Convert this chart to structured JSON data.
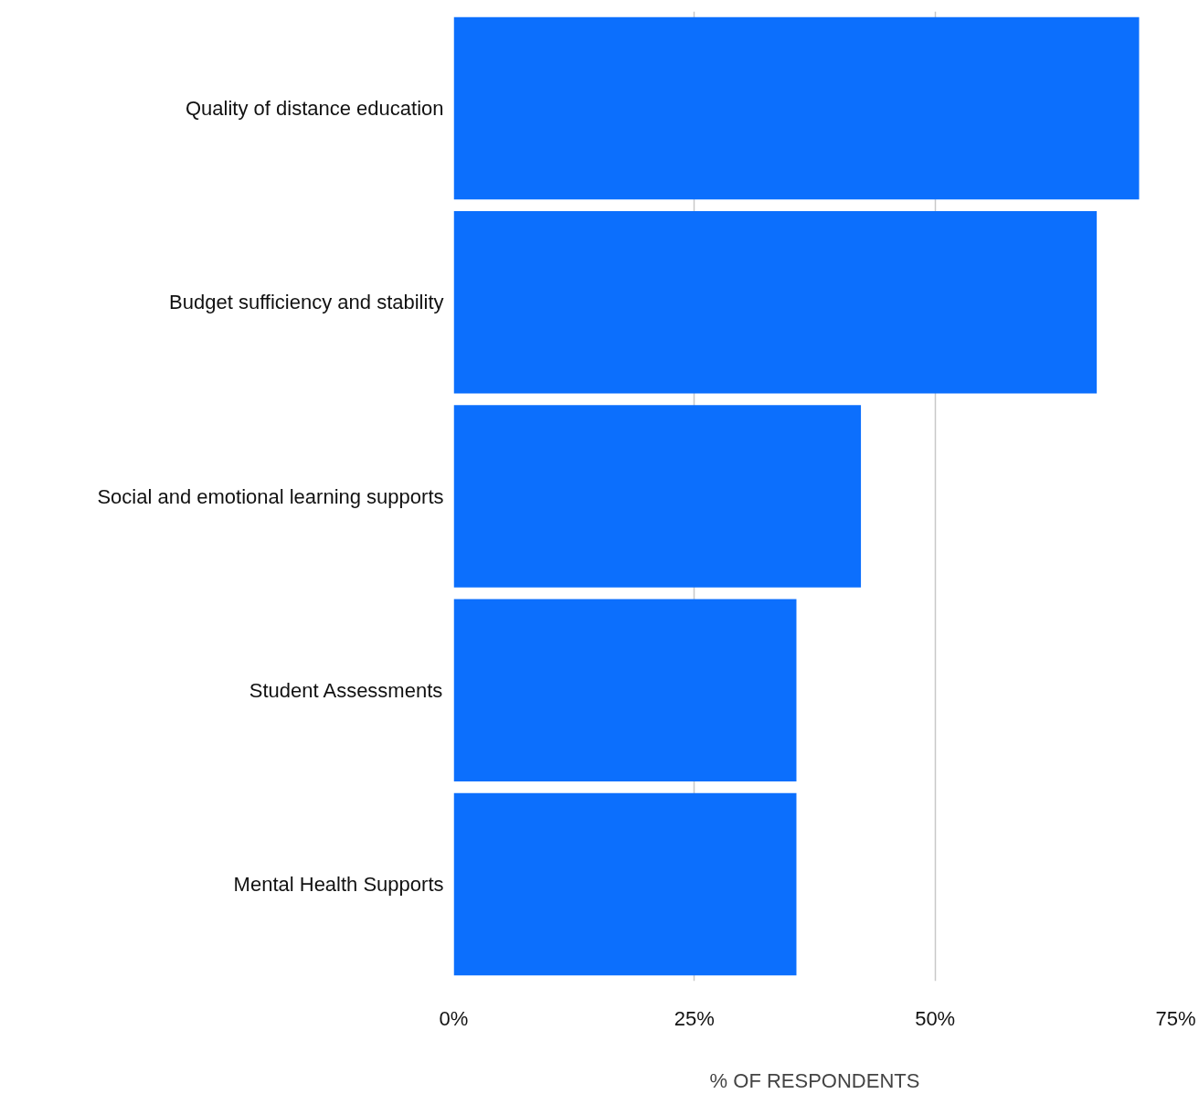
{
  "chart_data": {
    "type": "bar",
    "orientation": "horizontal",
    "xlabel": "% OF RESPONDENTS",
    "categories": [
      "Quality of distance education",
      "Budget sufficiency and stability",
      "Social and emotional learning supports",
      "Student Assessments",
      "Mental Health Supports"
    ],
    "values": [
      71.2,
      66.8,
      42.3,
      35.6,
      35.6
    ],
    "color": "#0c6ffd",
    "xlim": [
      0,
      75
    ],
    "xticks": [
      {
        "value": 0,
        "label": "0%"
      },
      {
        "value": 25,
        "label": "25%"
      },
      {
        "value": 50,
        "label": "50%"
      },
      {
        "value": 75,
        "label": "75%"
      }
    ],
    "grid": "x"
  }
}
